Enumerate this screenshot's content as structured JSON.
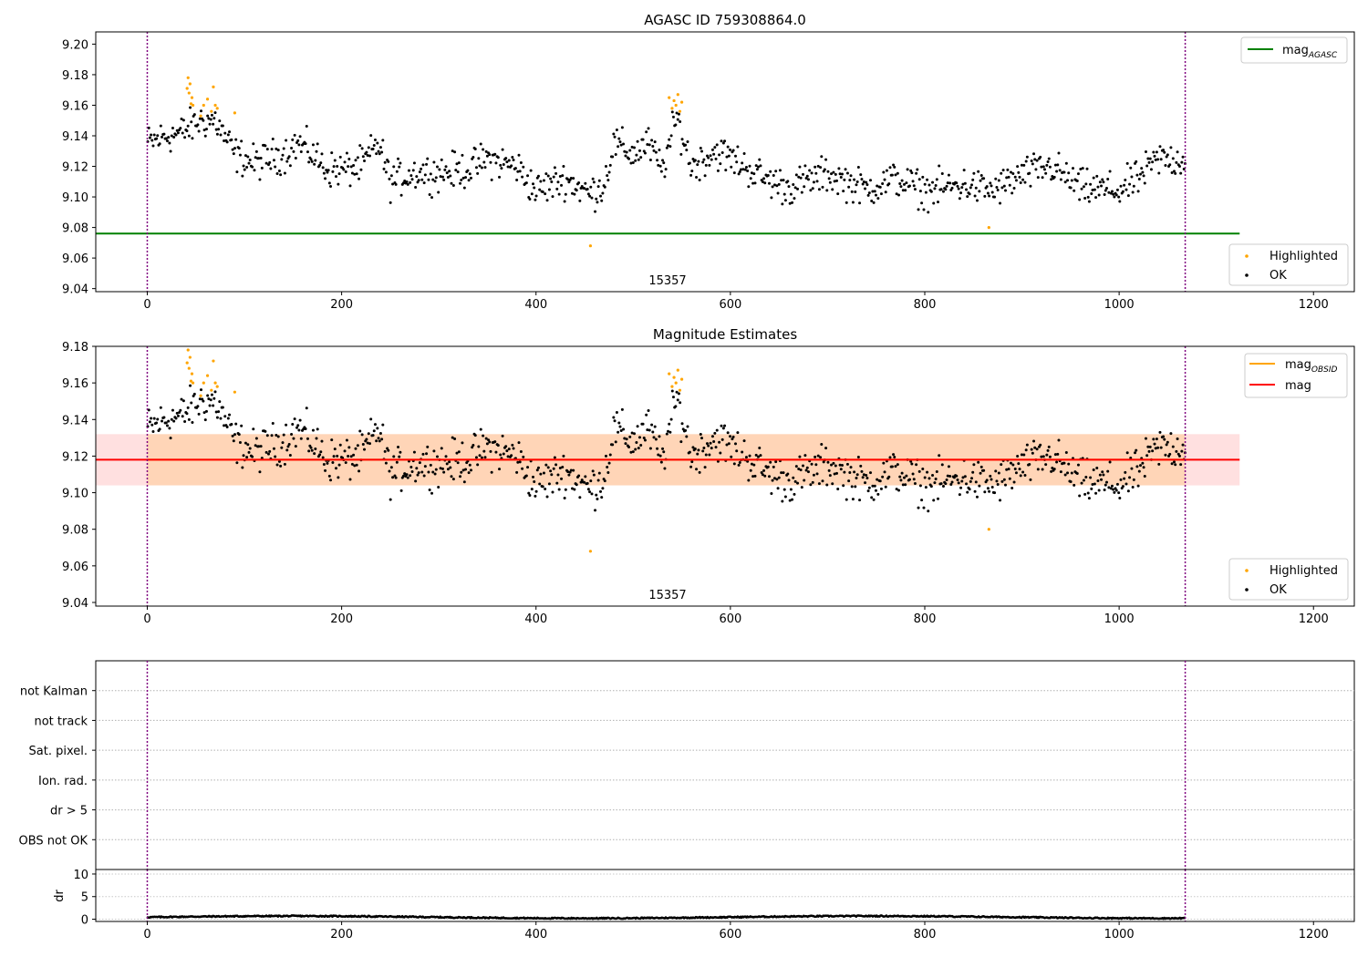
{
  "chart_data": [
    {
      "type": "scatter",
      "title": "AGASC ID 759308864.0",
      "xlim": [
        -53,
        1242
      ],
      "ylim": [
        9.038,
        9.208
      ],
      "xticks": [
        0,
        200,
        400,
        600,
        800,
        1000,
        1200
      ],
      "yticks": [
        9.04,
        9.06,
        9.08,
        9.1,
        9.12,
        9.14,
        9.16,
        9.18,
        9.2
      ],
      "obsid_label": "15357",
      "obsid_boundaries": [
        0,
        1068
      ],
      "mag_agasc": 9.076,
      "line_extent": [
        -53,
        1124
      ],
      "legend_lines": [
        {
          "name": "mag",
          "subscript": "AGASC",
          "color": "#008000"
        }
      ],
      "legend_points": [
        "Highlighted",
        "OK"
      ],
      "series": [
        {
          "name": "Highlighted",
          "color": "#ffa500",
          "x": [
            41,
            42,
            43,
            44,
            45,
            46,
            47,
            55,
            58,
            62,
            66,
            68,
            70,
            72,
            90,
            456,
            537,
            540,
            542,
            544,
            546,
            548,
            550,
            866
          ],
          "y": [
            9.171,
            9.178,
            9.168,
            9.174,
            9.161,
            9.165,
            9.16,
            9.153,
            9.16,
            9.164,
            9.156,
            9.172,
            9.16,
            9.158,
            9.155,
            9.068,
            9.165,
            9.158,
            9.163,
            9.16,
            9.167,
            9.156,
            9.162,
            9.08
          ]
        }
      ]
    },
    {
      "type": "scatter",
      "title": "Magnitude Estimates",
      "xlim": [
        -53,
        1242
      ],
      "ylim": [
        9.038,
        9.18
      ],
      "xticks": [
        0,
        200,
        400,
        600,
        800,
        1000,
        1200
      ],
      "yticks": [
        9.04,
        9.06,
        9.08,
        9.1,
        9.12,
        9.14,
        9.16,
        9.18
      ],
      "obsid_label": "15357",
      "obsid_boundaries": [
        0,
        1068
      ],
      "mag": 9.118,
      "mag_band": [
        9.104,
        9.132
      ],
      "mag_obsid": 9.118,
      "mag_obsid_band": [
        9.104,
        9.132
      ],
      "obsid_extent": [
        0,
        1068
      ],
      "line_extent": [
        -53,
        1124
      ],
      "legend_lines": [
        {
          "name": "mag",
          "subscript": "OBSID",
          "color": "#ffa500"
        },
        {
          "name": "mag",
          "subscript": "",
          "color": "#ff0000"
        }
      ],
      "legend_points": [
        "Highlighted",
        "OK"
      ]
    },
    {
      "type": "scatter",
      "title": "",
      "flag_labels": [
        "not Kalman",
        "not track",
        "Sat. pixel.",
        "Ion. rad.",
        "dr > 5",
        "OBS not OK"
      ],
      "flag_points": [],
      "ylabel": "dr",
      "dr_ylim": [
        -0.5,
        11
      ],
      "dr_yticks": [
        0,
        5,
        10
      ],
      "xlim": [
        -53,
        1242
      ],
      "xticks": [
        0,
        200,
        400,
        600,
        800,
        1000,
        1200
      ],
      "obsid_boundaries": [
        0,
        1068
      ],
      "dr_mean": 0.45
    }
  ]
}
